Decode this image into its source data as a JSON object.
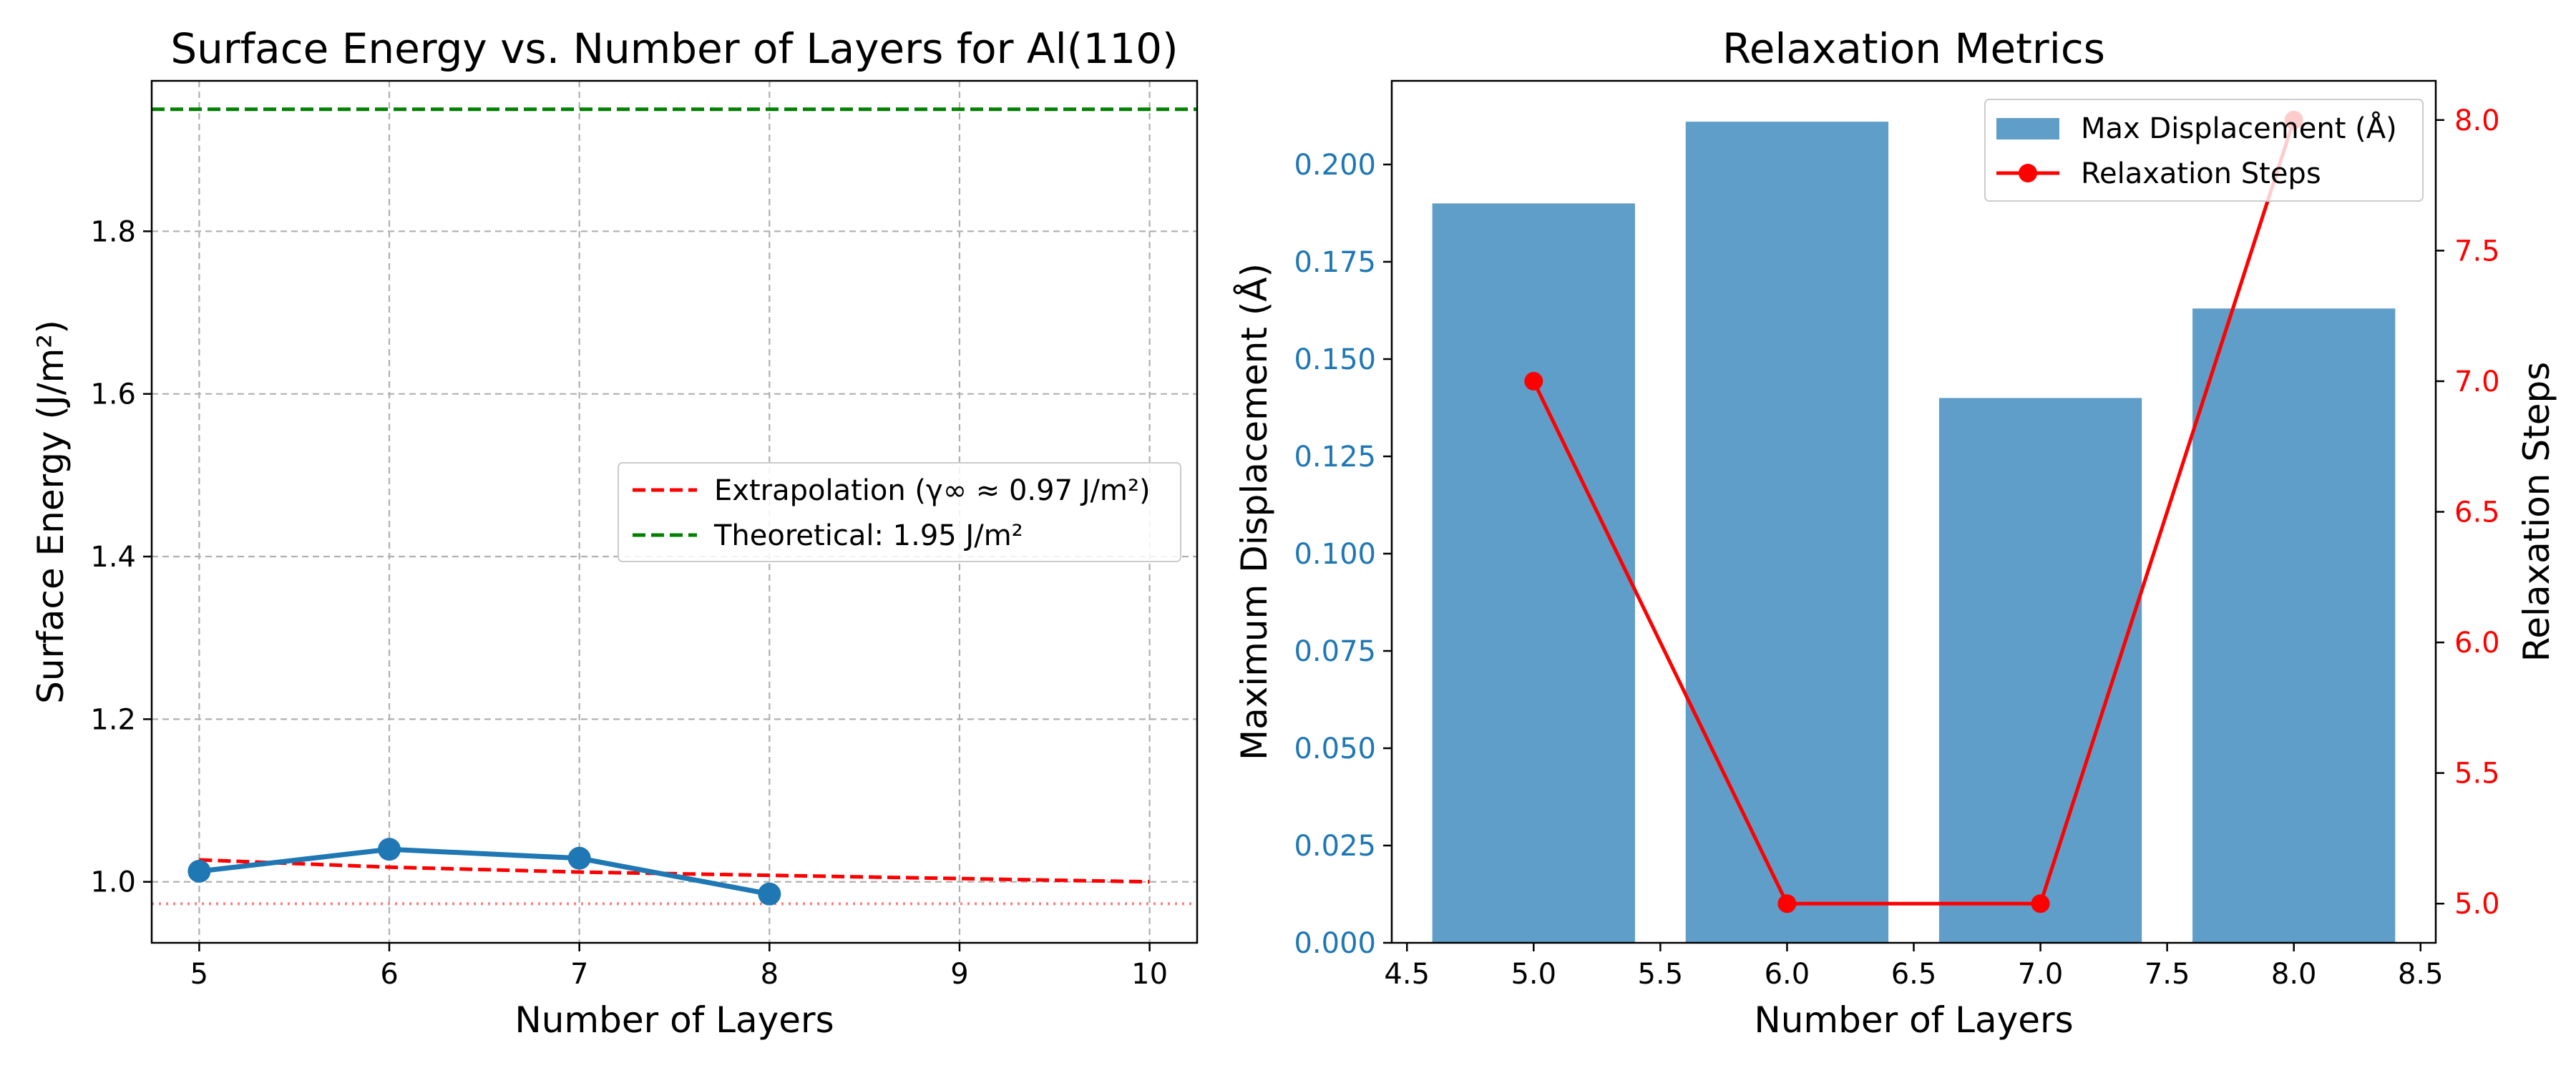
{
  "colors": {
    "energy_line": "#1f77b4",
    "extrapolation": "#ff0000",
    "theoretical": "#008000",
    "asymptote": "#ff7f7f",
    "bars": "#5f9ec9",
    "steps": "#ff0000",
    "left_axis_text": "#1f77b4",
    "right_axis_text": "#ff0000"
  },
  "chart_data": [
    {
      "type": "line",
      "title": "Surface Energy vs. Number of Layers for Al(110)",
      "xlabel": "Number of Layers",
      "ylabel": "Surface Energy (J/m²)",
      "xlim": [
        4.75,
        10.25
      ],
      "ylim": [
        0.925,
        1.985
      ],
      "xticks": [
        5,
        6,
        7,
        8,
        9,
        10
      ],
      "yticks": [
        1.0,
        1.2,
        1.4,
        1.6,
        1.8
      ],
      "grid": true,
      "legend_position": "center-right",
      "series": [
        {
          "kind": "line-marker",
          "x": [
            5,
            6,
            7,
            8
          ],
          "y": [
            1.013,
            1.04,
            1.029,
            0.985
          ]
        },
        {
          "kind": "dashed-line",
          "name": "Extrapolation (γ∞ ≈ 0.97 J/m²)",
          "x": [
            5,
            6,
            7,
            8,
            9,
            10
          ],
          "y": [
            1.027,
            1.018,
            1.012,
            1.008,
            1.004,
            1.0
          ]
        },
        {
          "kind": "hline-dashed",
          "name": "Theoretical: 1.95 J/m²",
          "y": 1.95
        },
        {
          "kind": "hline-dotted",
          "y": 0.973
        }
      ]
    },
    {
      "type": "bar",
      "title": "Relaxation Metrics",
      "xlabel": "Number of Layers",
      "ylabel": "Maximum Displacement (Å)",
      "y2label": "Relaxation Steps",
      "xlim": [
        4.44,
        8.56
      ],
      "ylim": [
        0,
        0.2215
      ],
      "y2lim": [
        4.85,
        8.15
      ],
      "xticks": [
        4.5,
        5.0,
        5.5,
        6.0,
        6.5,
        7.0,
        7.5,
        8.0,
        8.5
      ],
      "yticks": [
        0.0,
        0.025,
        0.05,
        0.075,
        0.1,
        0.125,
        0.15,
        0.175,
        0.2
      ],
      "y2ticks": [
        5.0,
        5.5,
        6.0,
        6.5,
        7.0,
        7.5,
        8.0
      ],
      "legend_position": "top-right",
      "categories": [
        5,
        6,
        7,
        8
      ],
      "bar_width": 0.8,
      "series": [
        {
          "name": "Max Displacement (Å)",
          "kind": "bar",
          "axis": "left",
          "values": [
            0.19,
            0.211,
            0.14,
            0.163
          ]
        },
        {
          "name": "Relaxation Steps",
          "kind": "line-marker",
          "axis": "right",
          "values": [
            7,
            5,
            5,
            8
          ]
        }
      ]
    }
  ]
}
